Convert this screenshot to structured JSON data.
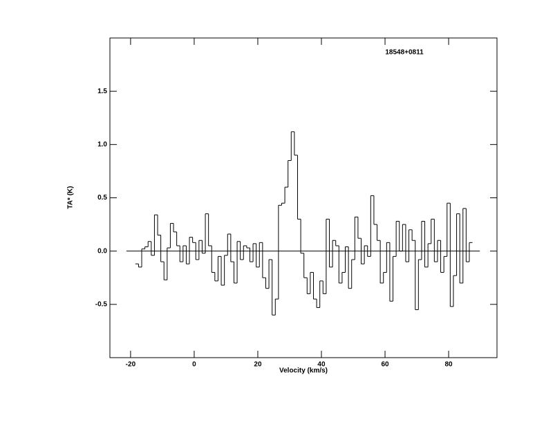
{
  "chart_data": {
    "type": "step",
    "annotation": "18548+0811",
    "xlabel": "Velocity (km/s)",
    "ylabel": "TA* (K)",
    "xlim": [
      -26.5,
      95.2
    ],
    "ylim": [
      -1.0,
      2.0
    ],
    "xticks": [
      -20,
      0,
      20,
      40,
      60,
      80
    ],
    "yticks": [
      -0.5,
      {
        "value": 0,
        "label": "0.0"
      },
      0.5,
      {
        "value": 1,
        "label": "1.0"
      },
      1.5
    ],
    "zero_line": {
      "y": 0,
      "xlim": [
        -21.3,
        89.8
      ]
    },
    "color": "#000000",
    "x": [
      -18,
      -17,
      -16,
      -15,
      -14,
      -13,
      -12,
      -11,
      -10,
      -9,
      -8,
      -7,
      -6,
      -5,
      -4,
      -3,
      -2,
      -1,
      0,
      1,
      2,
      3,
      4,
      5,
      6,
      7,
      8,
      9,
      10,
      11,
      12,
      13,
      14,
      15,
      16,
      17,
      18,
      19,
      20,
      21,
      22,
      23,
      24,
      25,
      26,
      27,
      28,
      29,
      30,
      31,
      32,
      33,
      34,
      35,
      36,
      37,
      38,
      39,
      40,
      41,
      42,
      43,
      44,
      45,
      46,
      47,
      48,
      49,
      50,
      51,
      52,
      53,
      54,
      55,
      56,
      57,
      58,
      59,
      60,
      61,
      62,
      63,
      64,
      65,
      66,
      67,
      68,
      69,
      70,
      71,
      72,
      73,
      74,
      75,
      76,
      77,
      78,
      79,
      80,
      81,
      82,
      83,
      84,
      85,
      86,
      87
    ],
    "values": [
      -0.12,
      -0.15,
      0.02,
      0.04,
      0.09,
      -0.04,
      0.34,
      0.15,
      -0.1,
      -0.27,
      0.03,
      0.26,
      0.18,
      0.05,
      -0.1,
      0.05,
      -0.12,
      0.13,
      0.08,
      -0.08,
      0.1,
      -0.02,
      0.35,
      0.05,
      -0.2,
      -0.28,
      -0.05,
      -0.32,
      -0.04,
      0.16,
      -0.1,
      -0.3,
      0.09,
      -0.08,
      0.05,
      0.03,
      -0.1,
      0.07,
      -0.15,
      0.08,
      -0.25,
      -0.35,
      -0.08,
      -0.6,
      -0.45,
      0.43,
      0.45,
      0.6,
      0.85,
      1.12,
      0.9,
      0.3,
      -0.02,
      -0.25,
      -0.4,
      -0.2,
      -0.45,
      -0.53,
      -0.28,
      -0.4,
      0.3,
      -0.15,
      0.1,
      0.05,
      -0.3,
      -0.2,
      0.04,
      -0.35,
      -0.08,
      0.32,
      0.12,
      -0.12,
      0.05,
      -0.05,
      0.52,
      0.25,
      0.1,
      -0.3,
      -0.2,
      0.08,
      -0.47,
      -0.05,
      0.28,
      0.0,
      0.25,
      -0.1,
      0.2,
      0.1,
      -0.55,
      -0.08,
      0.28,
      -0.15,
      0.07,
      0.3,
      -0.1,
      0.1,
      -0.2,
      -0.05,
      0.45,
      -0.52,
      -0.23,
      0.35,
      -0.3,
      0.4,
      -0.1,
      0.08
    ]
  }
}
